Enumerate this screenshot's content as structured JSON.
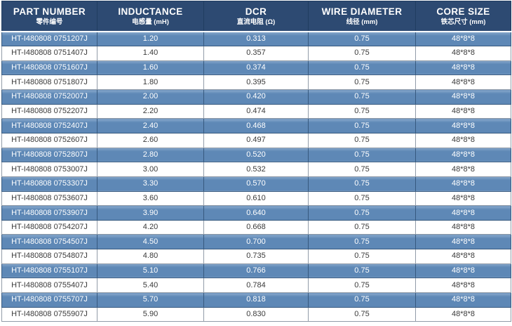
{
  "colors": {
    "header_bg": "#2d4a72",
    "header_text": "#ffffff",
    "header_divider": "#203d60",
    "row_blue_bg": "#5e88b6",
    "row_blue_top_edge": "#87a8cc",
    "row_blue_text": "#ffffff",
    "row_white_bg": "#ffffff",
    "row_white_text": "#3a3a3a",
    "border_dark": "#36597f",
    "border_light": "#929ca8"
  },
  "table": {
    "columns": [
      {
        "label_en": "PART NUMBER",
        "label_cn": "零件编号"
      },
      {
        "label_en": "INDUCTANCE",
        "label_cn": "电感量 (mH)"
      },
      {
        "label_en": "DCR",
        "label_cn": "直流电阻 (Ω)"
      },
      {
        "label_en": "WIRE DIAMETER",
        "label_cn": "线径 (mm)"
      },
      {
        "label_en": "CORE SIZE",
        "label_cn": "铁芯尺寸 (mm)"
      }
    ],
    "cell_names": [
      "part-number-cell",
      "inductance-cell",
      "dcr-cell",
      "wire-diameter-cell",
      "core-size-cell"
    ],
    "rows": [
      [
        "HT-I480808 0751207J",
        "1.20",
        "0.313",
        "0.75",
        "48*8*8"
      ],
      [
        "HT-I480808 0751407J",
        "1.40",
        "0.357",
        "0.75",
        "48*8*8"
      ],
      [
        "HT-I480808 0751607J",
        "1.60",
        "0.374",
        "0.75",
        "48*8*8"
      ],
      [
        "HT-I480808 0751807J",
        "1.80",
        "0.395",
        "0.75",
        "48*8*8"
      ],
      [
        "HT-I480808 0752007J",
        "2.00",
        "0.420",
        "0.75",
        "48*8*8"
      ],
      [
        "HT-I480808 0752207J",
        "2.20",
        "0.474",
        "0.75",
        "48*8*8"
      ],
      [
        "HT-I480808 0752407J",
        "2.40",
        "0.468",
        "0.75",
        "48*8*8"
      ],
      [
        "HT-I480808 0752607J",
        "2.60",
        "0.497",
        "0.75",
        "48*8*8"
      ],
      [
        "HT-I480808 0752807J",
        "2.80",
        "0.520",
        "0.75",
        "48*8*8"
      ],
      [
        "HT-I480808 0753007J",
        "3.00",
        "0.532",
        "0.75",
        "48*8*8"
      ],
      [
        "HT-I480808 0753307J",
        "3.30",
        "0.570",
        "0.75",
        "48*8*8"
      ],
      [
        "HT-I480808 0753607J",
        "3.60",
        "0.610",
        "0.75",
        "48*8*8"
      ],
      [
        "HT-I480808 0753907J",
        "3.90",
        "0.640",
        "0.75",
        "48*8*8"
      ],
      [
        "HT-I480808 0754207J",
        "4.20",
        "0.668",
        "0.75",
        "48*8*8"
      ],
      [
        "HT-I480808 0754507J",
        "4.50",
        "0.700",
        "0.75",
        "48*8*8"
      ],
      [
        "HT-I480808 0754807J",
        "4.80",
        "0.735",
        "0.75",
        "48*8*8"
      ],
      [
        "HT-I480808 0755107J",
        "5.10",
        "0.766",
        "0.75",
        "48*8*8"
      ],
      [
        "HT-I480808 0755407J",
        "5.40",
        "0.784",
        "0.75",
        "48*8*8"
      ],
      [
        "HT-I480808 0755707J",
        "5.70",
        "0.818",
        "0.75",
        "48*8*8"
      ],
      [
        "HT-I480808 0755907J",
        "5.90",
        "0.830",
        "0.75",
        "48*8*8"
      ]
    ]
  }
}
